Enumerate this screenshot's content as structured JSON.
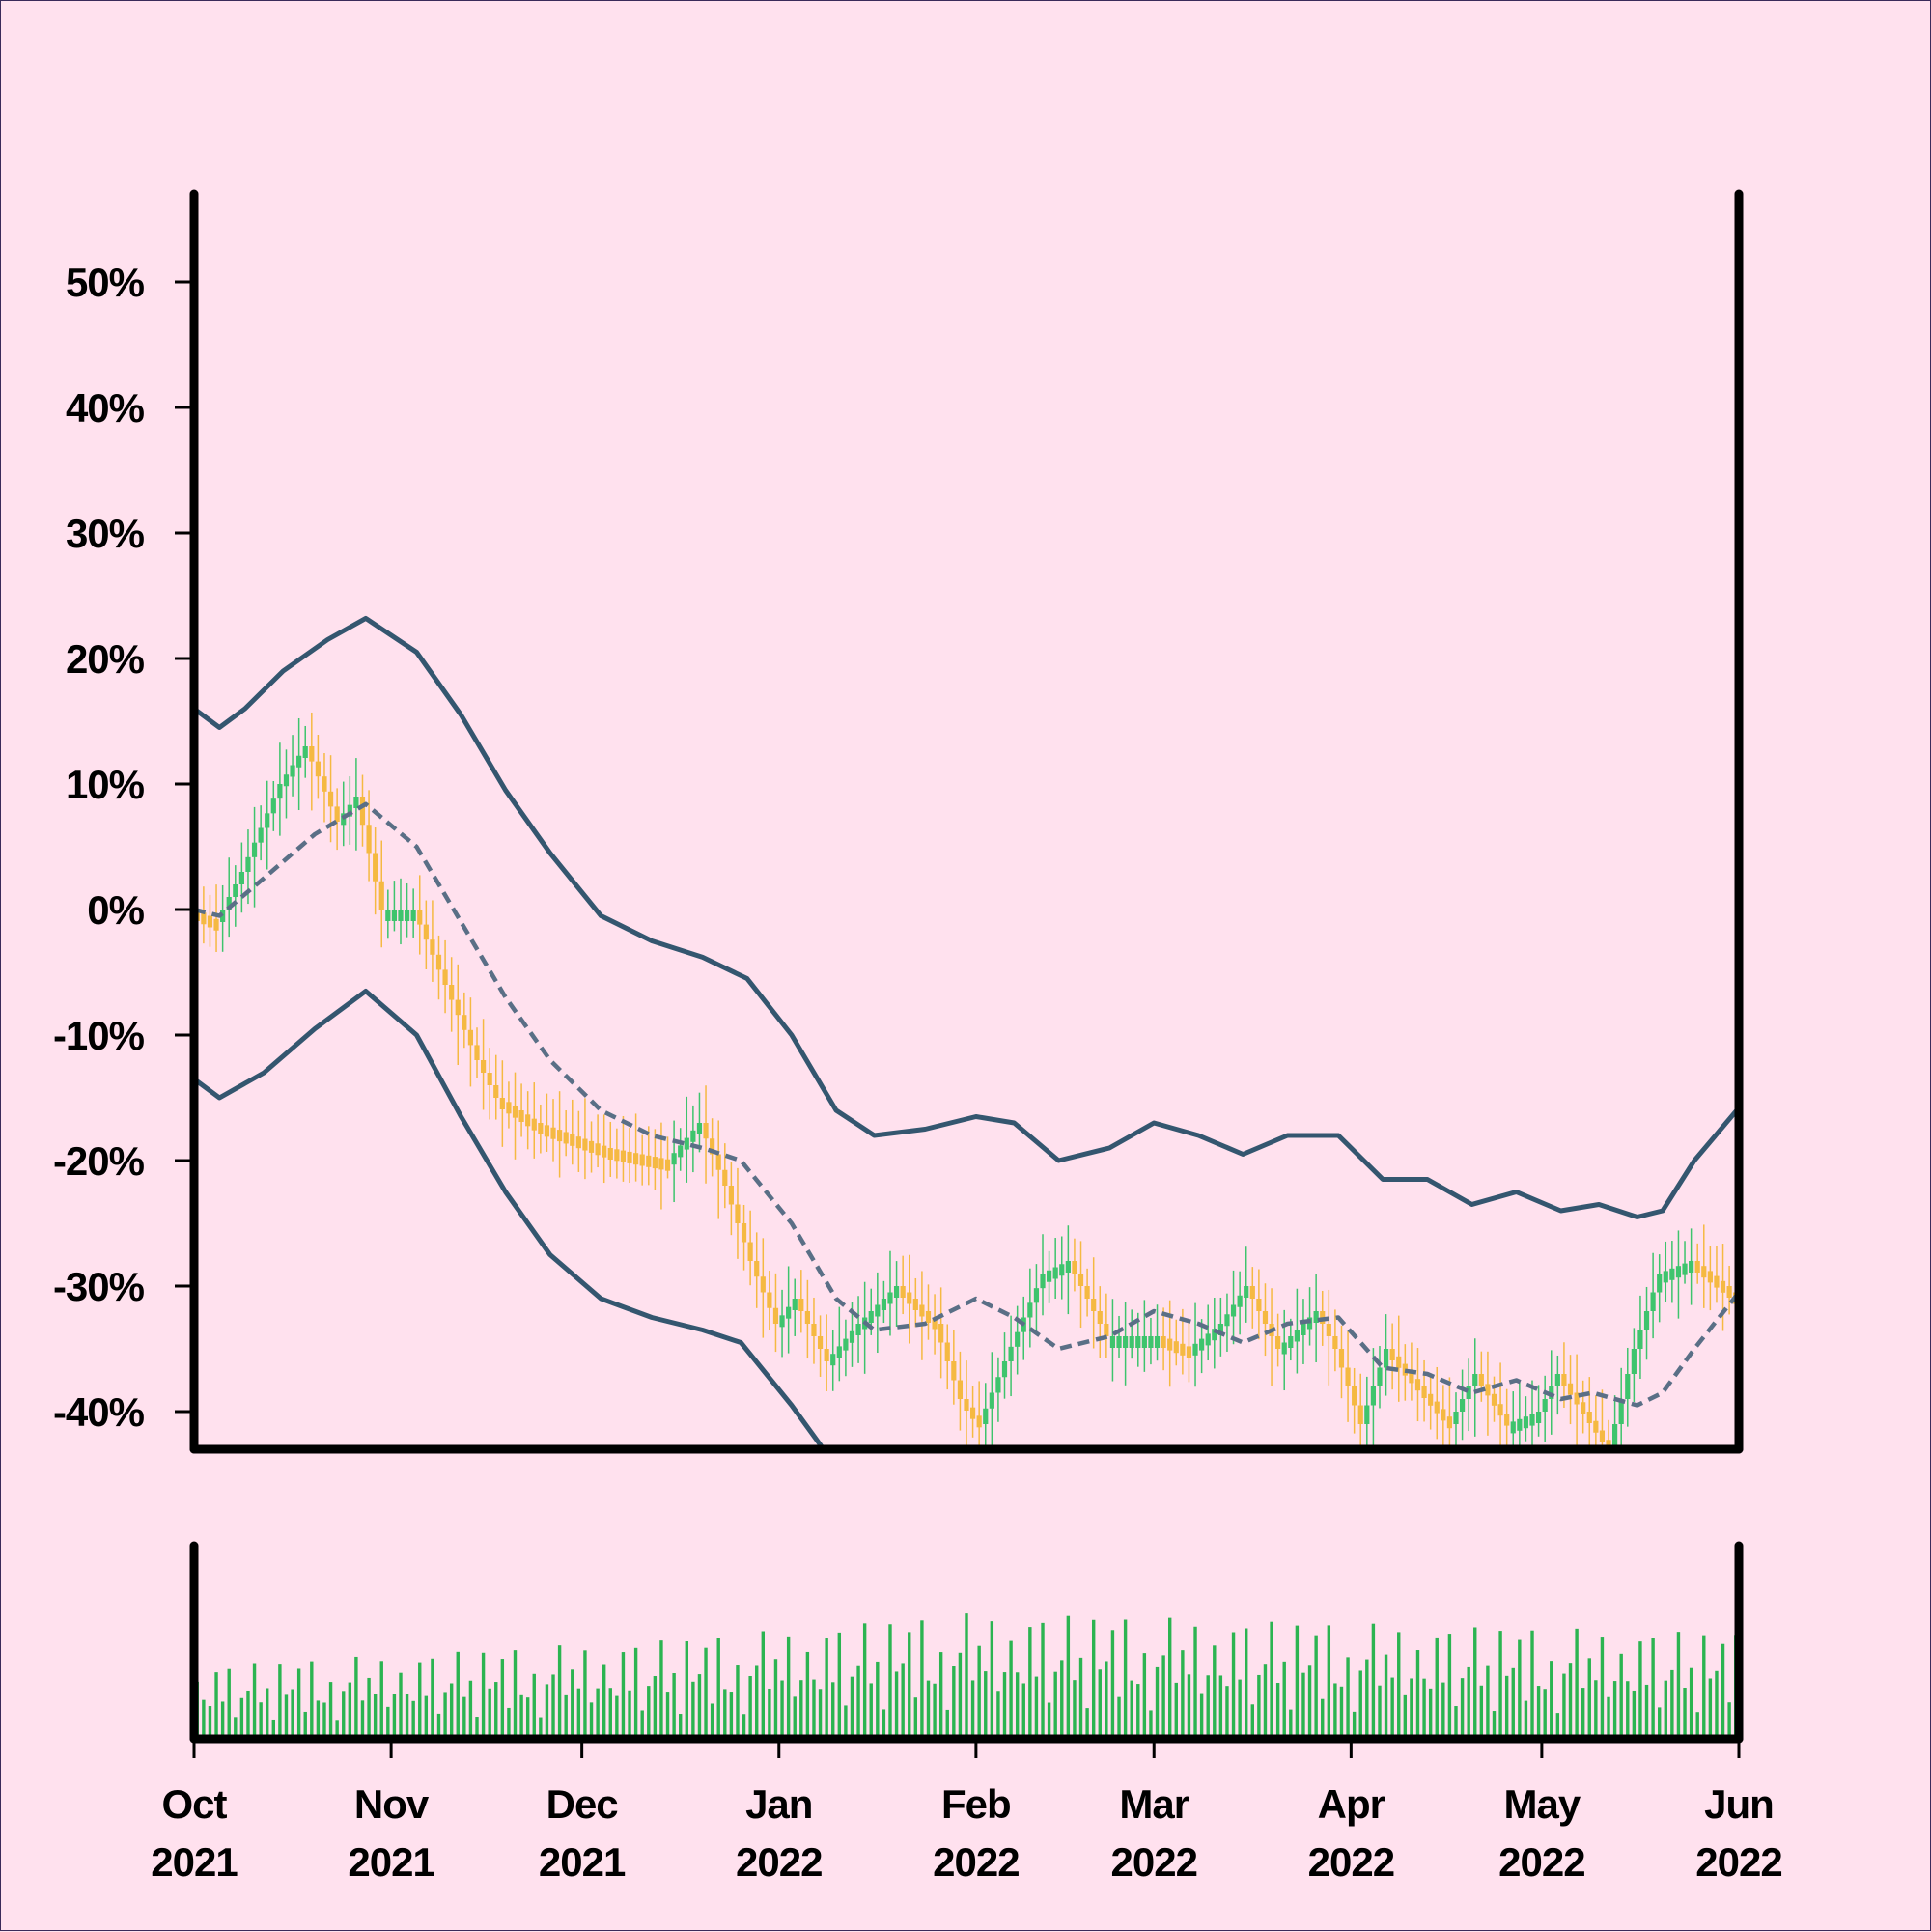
{
  "chart_data": {
    "type": "candlestick",
    "title": "",
    "xlabel": "",
    "ylabel": "",
    "ylim": [
      -0.43,
      0.57
    ],
    "y_ticks": [
      -0.4,
      -0.3,
      -0.2,
      -0.1,
      0,
      0.1,
      0.2,
      0.3,
      0.4,
      0.5
    ],
    "y_tick_labels": [
      "-40%",
      "-30%",
      "-20%",
      "-10%",
      "0%",
      "10%",
      "20%",
      "30%",
      "40%",
      "50%"
    ],
    "x_range": [
      "2021-10-01",
      "2022-06-01"
    ],
    "x_ticks": [
      {
        "date": "2021-10-01",
        "month": "Oct",
        "year": "2021"
      },
      {
        "date": "2021-11-01",
        "month": "Nov",
        "year": "2021"
      },
      {
        "date": "2021-12-01",
        "month": "Dec",
        "year": "2021"
      },
      {
        "date": "2022-01-01",
        "month": "Jan",
        "year": "2022"
      },
      {
        "date": "2022-02-01",
        "month": "Feb",
        "year": "2022"
      },
      {
        "date": "2022-03-01",
        "month": "Mar",
        "year": "2022"
      },
      {
        "date": "2022-04-01",
        "month": "Apr",
        "year": "2022"
      },
      {
        "date": "2022-05-01",
        "month": "May",
        "year": "2022"
      },
      {
        "date": "2022-06-01",
        "month": "Jun",
        "year": "2022"
      }
    ],
    "colors": {
      "up": "#3ec46d",
      "down": "#f5b942",
      "band": "#34566f",
      "mid": "#5a6f86",
      "volume": "#2bb451",
      "background": "#ffe1ee",
      "axis": "#000000"
    },
    "close_anchors": [
      [
        "2021-10-01",
        0.0
      ],
      [
        "2021-10-05",
        -0.01
      ],
      [
        "2021-10-09",
        0.03
      ],
      [
        "2021-10-15",
        0.1
      ],
      [
        "2021-10-19",
        0.13
      ],
      [
        "2021-10-24",
        0.07
      ],
      [
        "2021-10-27",
        0.09
      ],
      [
        "2021-10-31",
        0.0
      ],
      [
        "2021-11-05",
        0.0
      ],
      [
        "2021-11-10",
        -0.06
      ],
      [
        "2021-11-15",
        -0.12
      ],
      [
        "2021-11-18",
        -0.15
      ],
      [
        "2021-11-24",
        -0.17
      ],
      [
        "2021-12-05",
        -0.19
      ],
      [
        "2021-12-15",
        -0.2
      ],
      [
        "2021-12-20",
        -0.17
      ],
      [
        "2021-12-24",
        -0.22
      ],
      [
        "2021-12-28",
        -0.28
      ],
      [
        "2022-01-01",
        -0.33
      ],
      [
        "2022-01-04",
        -0.31
      ],
      [
        "2022-01-09",
        -0.36
      ],
      [
        "2022-01-14",
        -0.33
      ],
      [
        "2022-01-20",
        -0.3
      ],
      [
        "2022-01-26",
        -0.33
      ],
      [
        "2022-01-30",
        -0.39
      ],
      [
        "2022-02-02",
        -0.41
      ],
      [
        "2022-02-06",
        -0.36
      ],
      [
        "2022-02-12",
        -0.29
      ],
      [
        "2022-02-16",
        -0.28
      ],
      [
        "2022-02-22",
        -0.34
      ],
      [
        "2022-03-02",
        -0.34
      ],
      [
        "2022-03-07",
        -0.35
      ],
      [
        "2022-03-12",
        -0.33
      ],
      [
        "2022-03-16",
        -0.3
      ],
      [
        "2022-03-21",
        -0.35
      ],
      [
        "2022-03-27",
        -0.32
      ],
      [
        "2022-03-30",
        -0.35
      ],
      [
        "2022-04-03",
        -0.41
      ],
      [
        "2022-04-07",
        -0.35
      ],
      [
        "2022-04-12",
        -0.38
      ],
      [
        "2022-04-17",
        -0.41
      ],
      [
        "2022-04-21",
        -0.37
      ],
      [
        "2022-04-26",
        -0.41
      ],
      [
        "2022-05-01",
        -0.4
      ],
      [
        "2022-05-04",
        -0.37
      ],
      [
        "2022-05-08",
        -0.4
      ],
      [
        "2022-05-12",
        -0.43
      ],
      [
        "2022-05-16",
        -0.35
      ],
      [
        "2022-05-20",
        -0.29
      ],
      [
        "2022-05-25",
        -0.28
      ],
      [
        "2022-05-30",
        -0.3
      ],
      [
        "2022-06-01",
        -0.31
      ]
    ],
    "bollinger": {
      "upper": [
        [
          "2021-10-01",
          0.16
        ],
        [
          "2021-10-05",
          0.145
        ],
        [
          "2021-10-09",
          0.16
        ],
        [
          "2021-10-15",
          0.19
        ],
        [
          "2021-10-22",
          0.215
        ],
        [
          "2021-10-28",
          0.232
        ],
        [
          "2021-11-05",
          0.205
        ],
        [
          "2021-11-12",
          0.155
        ],
        [
          "2021-11-19",
          0.095
        ],
        [
          "2021-11-26",
          0.045
        ],
        [
          "2021-12-04",
          -0.005
        ],
        [
          "2021-12-12",
          -0.025
        ],
        [
          "2021-12-20",
          -0.038
        ],
        [
          "2021-12-27",
          -0.055
        ],
        [
          "2022-01-03",
          -0.1
        ],
        [
          "2022-01-10",
          -0.16
        ],
        [
          "2022-01-16",
          -0.18
        ],
        [
          "2022-01-24",
          -0.175
        ],
        [
          "2022-02-01",
          -0.165
        ],
        [
          "2022-02-07",
          -0.17
        ],
        [
          "2022-02-14",
          -0.2
        ],
        [
          "2022-02-22",
          -0.19
        ],
        [
          "2022-03-01",
          -0.17
        ],
        [
          "2022-03-08",
          -0.18
        ],
        [
          "2022-03-15",
          -0.195
        ],
        [
          "2022-03-22",
          -0.18
        ],
        [
          "2022-03-30",
          -0.18
        ],
        [
          "2022-04-06",
          -0.215
        ],
        [
          "2022-04-13",
          -0.215
        ],
        [
          "2022-04-20",
          -0.235
        ],
        [
          "2022-04-27",
          -0.225
        ],
        [
          "2022-05-04",
          -0.24
        ],
        [
          "2022-05-10",
          -0.235
        ],
        [
          "2022-05-16",
          -0.245
        ],
        [
          "2022-05-20",
          -0.24
        ],
        [
          "2022-05-25",
          -0.2
        ],
        [
          "2022-06-01",
          -0.158
        ]
      ],
      "middle": [
        [
          "2021-10-01",
          0.0
        ],
        [
          "2021-10-05",
          -0.005
        ],
        [
          "2021-10-12",
          0.025
        ],
        [
          "2021-10-20",
          0.06
        ],
        [
          "2021-10-28",
          0.084
        ],
        [
          "2021-11-05",
          0.05
        ],
        [
          "2021-11-12",
          -0.01
        ],
        [
          "2021-11-19",
          -0.07
        ],
        [
          "2021-11-26",
          -0.12
        ],
        [
          "2021-12-04",
          -0.16
        ],
        [
          "2021-12-12",
          -0.18
        ],
        [
          "2021-12-20",
          -0.19
        ],
        [
          "2021-12-26",
          -0.2
        ],
        [
          "2022-01-03",
          -0.25
        ],
        [
          "2022-01-10",
          -0.31
        ],
        [
          "2022-01-16",
          -0.335
        ],
        [
          "2022-01-24",
          -0.33
        ],
        [
          "2022-02-01",
          -0.31
        ],
        [
          "2022-02-07",
          -0.325
        ],
        [
          "2022-02-14",
          -0.35
        ],
        [
          "2022-02-22",
          -0.34
        ],
        [
          "2022-03-01",
          -0.32
        ],
        [
          "2022-03-08",
          -0.33
        ],
        [
          "2022-03-15",
          -0.345
        ],
        [
          "2022-03-22",
          -0.33
        ],
        [
          "2022-03-30",
          -0.325
        ],
        [
          "2022-04-06",
          -0.365
        ],
        [
          "2022-04-13",
          -0.37
        ],
        [
          "2022-04-20",
          -0.385
        ],
        [
          "2022-04-27",
          -0.375
        ],
        [
          "2022-05-04",
          -0.39
        ],
        [
          "2022-05-09",
          -0.385
        ],
        [
          "2022-05-16",
          -0.395
        ],
        [
          "2022-05-20",
          -0.385
        ],
        [
          "2022-05-25",
          -0.35
        ],
        [
          "2022-06-01",
          -0.305
        ]
      ],
      "lower": [
        [
          "2021-10-01",
          -0.135
        ],
        [
          "2021-10-05",
          -0.15
        ],
        [
          "2021-10-12",
          -0.13
        ],
        [
          "2021-10-20",
          -0.095
        ],
        [
          "2021-10-28",
          -0.065
        ],
        [
          "2021-11-05",
          -0.1
        ],
        [
          "2021-11-12",
          -0.165
        ],
        [
          "2021-11-19",
          -0.225
        ],
        [
          "2021-11-26",
          -0.275
        ],
        [
          "2021-12-04",
          -0.31
        ],
        [
          "2021-12-12",
          -0.325
        ],
        [
          "2021-12-20",
          -0.335
        ],
        [
          "2021-12-26",
          -0.345
        ],
        [
          "2022-01-03",
          -0.395
        ],
        [
          "2022-01-08",
          -0.43
        ]
      ]
    },
    "volume_pattern": [
      0.58,
      0.4,
      0.21,
      0.7,
      0.33,
      0.88,
      0.15,
      0.52,
      0.46,
      0.74,
      0.27,
      0.63,
      0.09,
      0.95,
      0.36,
      0.55,
      0.81,
      0.19,
      0.68,
      0.42,
      0.3,
      0.77,
      0.12,
      0.6,
      0.49,
      0.85,
      0.24,
      0.71,
      0.38,
      0.93,
      0.17,
      0.5
    ],
    "volume_levels": [
      [
        "2021-10-01",
        0.55
      ],
      [
        "2021-12-15",
        0.75
      ],
      [
        "2022-02-01",
        0.95
      ],
      [
        "2022-04-15",
        0.85
      ],
      [
        "2022-06-01",
        0.8
      ]
    ]
  }
}
